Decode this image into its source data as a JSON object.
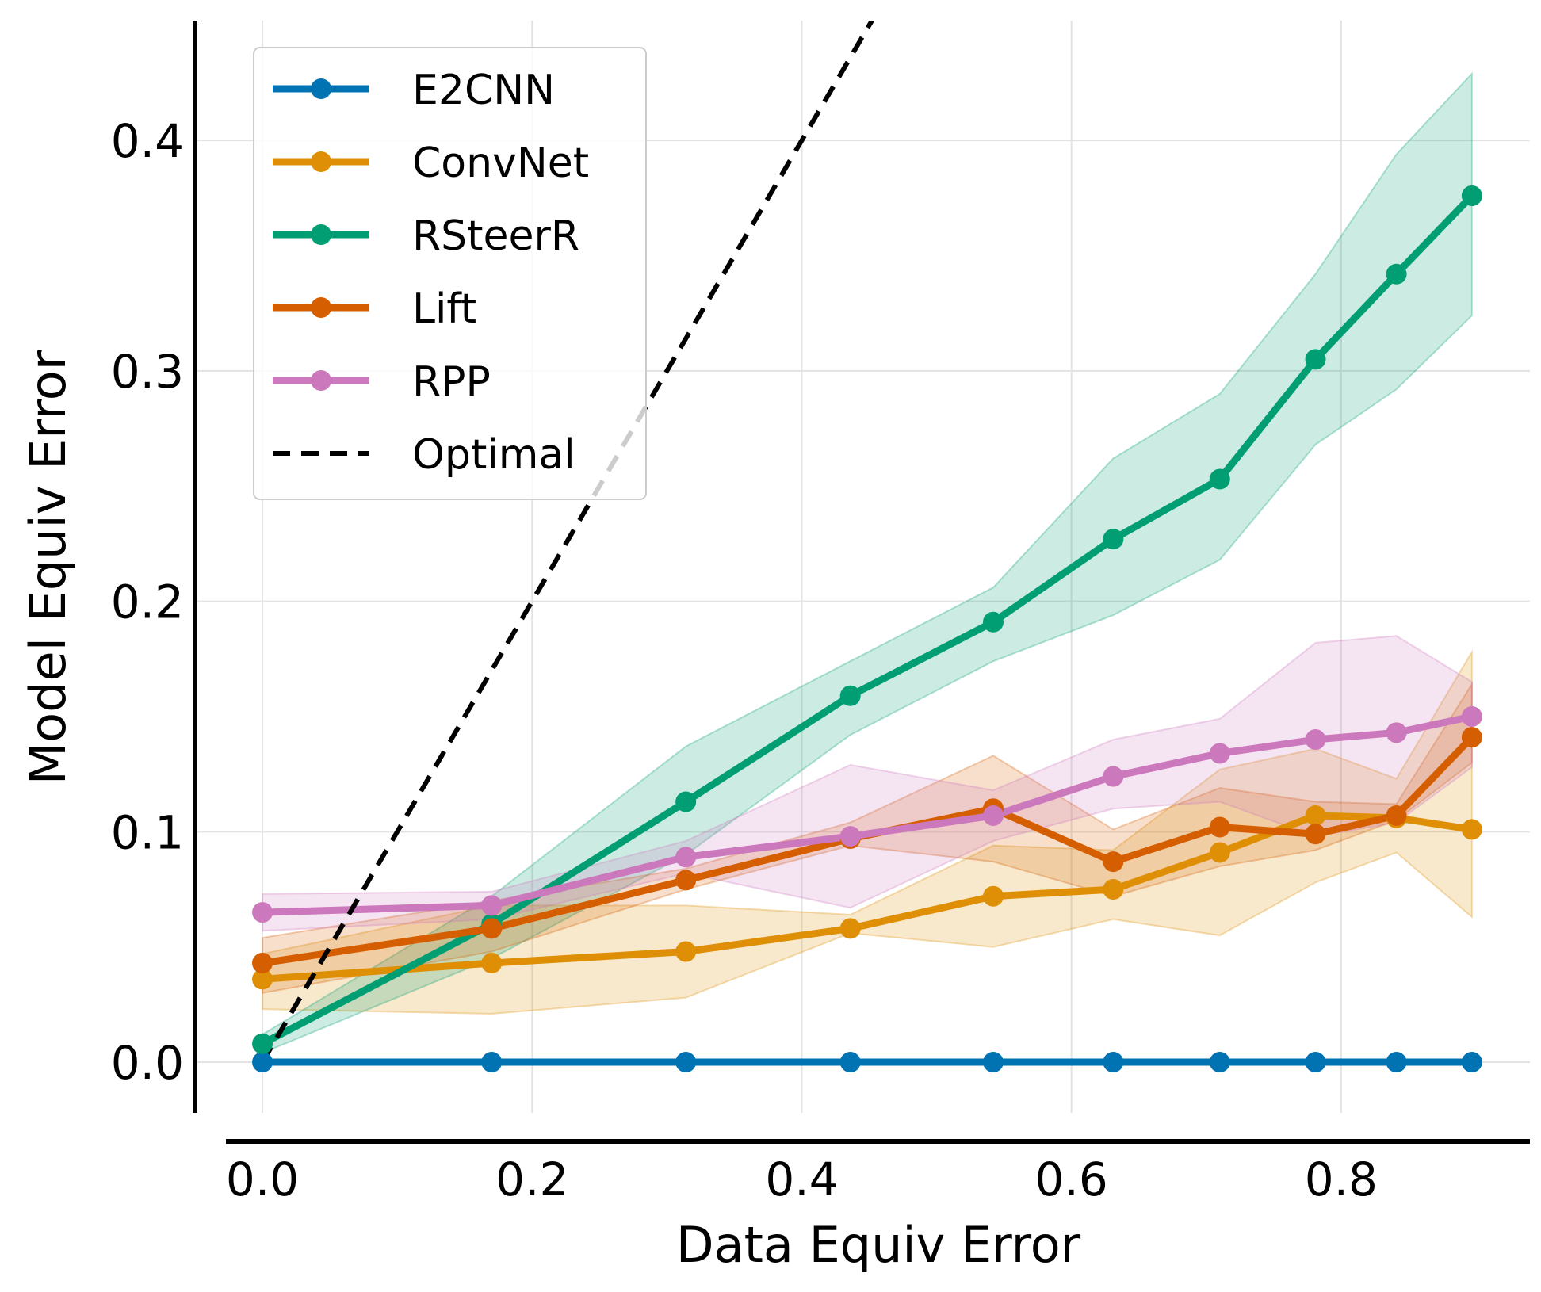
{
  "chart_data": {
    "type": "line",
    "title": "",
    "xlabel": "Data Equiv Error",
    "ylabel": "Model Equiv Error",
    "xlim": [
      -0.05,
      0.94
    ],
    "ylim": [
      -0.022,
      0.452
    ],
    "xticks": [
      0.0,
      0.2,
      0.4,
      0.6,
      0.8
    ],
    "yticks": [
      0.0,
      0.1,
      0.2,
      0.3,
      0.4
    ],
    "xtick_labels": [
      "0.0",
      "0.2",
      "0.4",
      "0.6",
      "0.8"
    ],
    "ytick_labels": [
      "0.0",
      "0.1",
      "0.2",
      "0.3",
      "0.4"
    ],
    "grid": true,
    "legend_position": "top-left",
    "x": [
      0.0,
      0.17,
      0.314,
      0.436,
      0.542,
      0.631,
      0.71,
      0.781,
      0.841,
      0.897
    ],
    "series": [
      {
        "name": "E2CNN",
        "color": "#0173b2",
        "values": [
          0.0,
          0.0,
          0.0,
          0.0,
          0.0,
          0.0,
          0.0,
          0.0,
          0.0,
          0.0
        ],
        "lower": [
          0.0,
          0.0,
          0.0,
          0.0,
          0.0,
          0.0,
          0.0,
          0.0,
          0.0,
          0.0
        ],
        "upper": [
          0.0,
          0.0,
          0.0,
          0.0,
          0.0,
          0.0,
          0.0,
          0.0,
          0.0,
          0.0
        ]
      },
      {
        "name": "ConvNet",
        "color": "#de8f05",
        "values": [
          0.036,
          0.043,
          0.048,
          0.058,
          0.072,
          0.075,
          0.091,
          0.107,
          0.106,
          0.101
        ],
        "lower": [
          0.023,
          0.021,
          0.028,
          0.056,
          0.05,
          0.062,
          0.055,
          0.078,
          0.091,
          0.063
        ],
        "upper": [
          0.047,
          0.068,
          0.068,
          0.064,
          0.094,
          0.092,
          0.127,
          0.136,
          0.123,
          0.178
        ]
      },
      {
        "name": "RSteerR",
        "color": "#029e73",
        "values": [
          0.008,
          0.06,
          0.113,
          0.159,
          0.191,
          0.227,
          0.253,
          0.305,
          0.342,
          0.376
        ],
        "lower": [
          0.004,
          0.045,
          0.09,
          0.142,
          0.174,
          0.194,
          0.218,
          0.268,
          0.292,
          0.324
        ],
        "upper": [
          0.012,
          0.072,
          0.137,
          0.174,
          0.206,
          0.262,
          0.29,
          0.342,
          0.394,
          0.429
        ]
      },
      {
        "name": "Lift",
        "color": "#d55e00",
        "values": [
          0.043,
          0.058,
          0.079,
          0.097,
          0.11,
          0.087,
          0.102,
          0.099,
          0.107,
          0.141
        ],
        "lower": [
          0.03,
          0.048,
          0.075,
          0.094,
          0.087,
          0.072,
          0.085,
          0.092,
          0.105,
          0.13
        ],
        "upper": [
          0.054,
          0.07,
          0.084,
          0.104,
          0.133,
          0.101,
          0.119,
          0.113,
          0.112,
          0.164
        ]
      },
      {
        "name": "RPP",
        "color": "#cc78bc",
        "values": [
          0.065,
          0.068,
          0.089,
          0.098,
          0.107,
          0.124,
          0.134,
          0.14,
          0.143,
          0.15
        ],
        "lower": [
          0.057,
          0.062,
          0.082,
          0.067,
          0.096,
          0.11,
          0.113,
          0.098,
          0.104,
          0.128
        ],
        "upper": [
          0.073,
          0.074,
          0.096,
          0.129,
          0.118,
          0.14,
          0.149,
          0.182,
          0.185,
          0.165
        ]
      },
      {
        "name": "Optimal",
        "color": "#000000",
        "dashed": true,
        "x": [
          0.0,
          0.5
        ],
        "values": [
          0.0,
          0.5
        ]
      }
    ]
  }
}
